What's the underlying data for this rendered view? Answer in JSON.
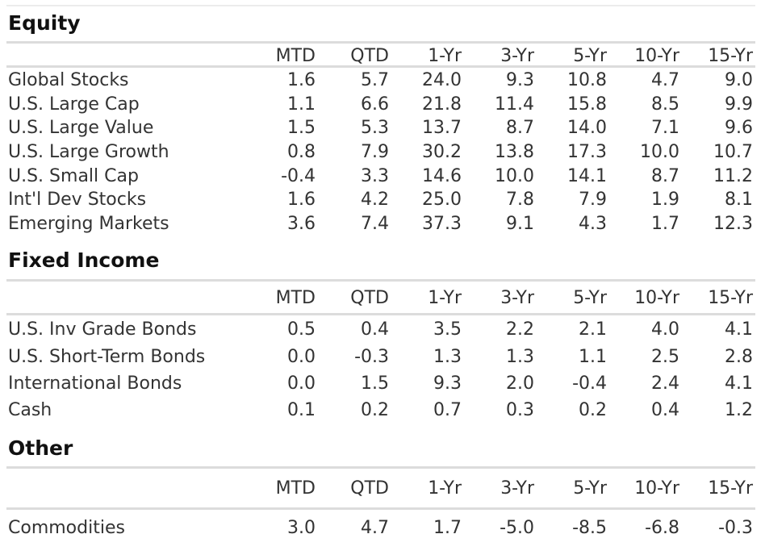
{
  "columns": [
    "MTD",
    "QTD",
    "1-Yr",
    "3-Yr",
    "5-Yr",
    "10-Yr",
    "15-Yr"
  ],
  "sections": [
    {
      "title": "Equity",
      "rows": [
        {
          "label": "Global Stocks",
          "values": [
            "1.6",
            "5.7",
            "24.0",
            "9.3",
            "10.8",
            "4.7",
            "9.0"
          ]
        },
        {
          "label": "U.S. Large Cap",
          "values": [
            "1.1",
            "6.6",
            "21.8",
            "11.4",
            "15.8",
            "8.5",
            "9.9"
          ]
        },
        {
          "label": "U.S. Large Value",
          "values": [
            "1.5",
            "5.3",
            "13.7",
            "8.7",
            "14.0",
            "7.1",
            "9.6"
          ]
        },
        {
          "label": "U.S. Large Growth",
          "values": [
            "0.8",
            "7.9",
            "30.2",
            "13.8",
            "17.3",
            "10.0",
            "10.7"
          ]
        },
        {
          "label": "U.S. Small Cap",
          "values": [
            "-0.4",
            "3.3",
            "14.6",
            "10.0",
            "14.1",
            "8.7",
            "11.2"
          ]
        },
        {
          "label": "Int'l Dev Stocks",
          "values": [
            "1.6",
            "4.2",
            "25.0",
            "7.8",
            "7.9",
            "1.9",
            "8.1"
          ]
        },
        {
          "label": "Emerging Markets",
          "values": [
            "3.6",
            "7.4",
            "37.3",
            "9.1",
            "4.3",
            "1.7",
            "12.3"
          ]
        }
      ]
    },
    {
      "title": "Fixed Income",
      "rows": [
        {
          "label": "U.S. Inv Grade Bonds",
          "values": [
            "0.5",
            "0.4",
            "3.5",
            "2.2",
            "2.1",
            "4.0",
            "4.1"
          ]
        },
        {
          "label": "U.S. Short-Term Bonds",
          "values": [
            "0.0",
            "-0.3",
            "1.3",
            "1.3",
            "1.1",
            "2.5",
            "2.8"
          ]
        },
        {
          "label": "International Bonds",
          "values": [
            "0.0",
            "1.5",
            "9.3",
            "2.0",
            "-0.4",
            "2.4",
            "4.1"
          ]
        },
        {
          "label": "Cash",
          "values": [
            "0.1",
            "0.2",
            "0.7",
            "0.3",
            "0.2",
            "0.4",
            "1.2"
          ]
        }
      ]
    },
    {
      "title": "Other",
      "rows": [
        {
          "label": "Commodities",
          "values": [
            "3.0",
            "4.7",
            "1.7",
            "-5.0",
            "-8.5",
            "-6.8",
            "-0.3"
          ]
        }
      ]
    }
  ]
}
